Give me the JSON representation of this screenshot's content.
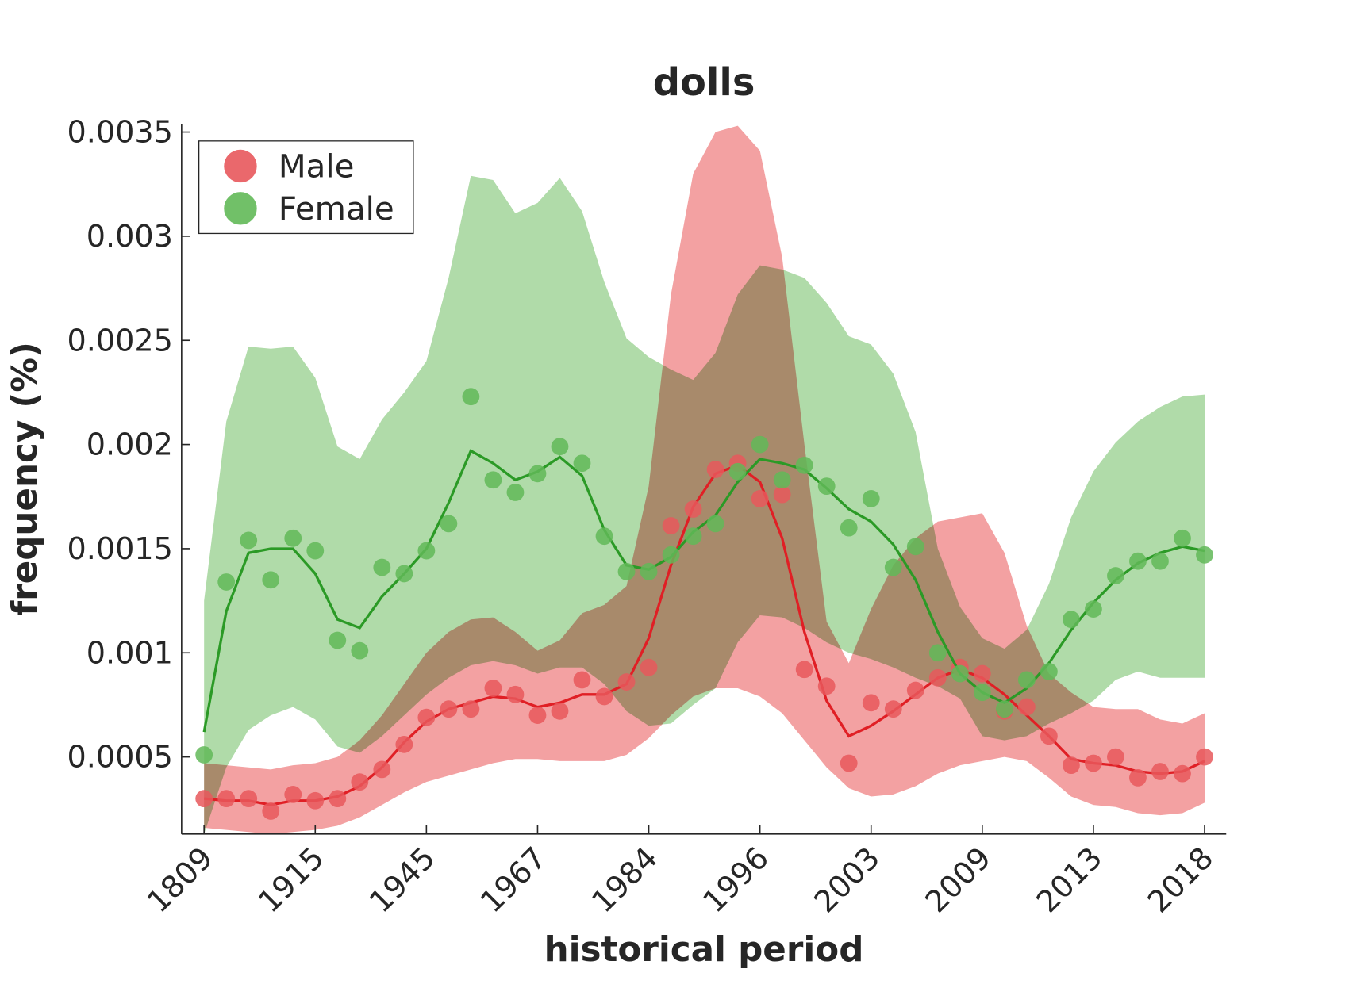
{
  "chart_data": {
    "type": "scatter-band",
    "title": "dolls",
    "x_label": "historical period",
    "y_label": "frequency (%)",
    "categories": [
      "1809",
      null,
      null,
      null,
      null,
      "1915",
      null,
      null,
      null,
      null,
      "1945",
      null,
      null,
      null,
      null,
      "1967",
      null,
      null,
      null,
      null,
      "1984",
      null,
      null,
      null,
      null,
      "1996",
      null,
      null,
      null,
      null,
      "2003",
      null,
      null,
      null,
      null,
      "2009",
      null,
      null,
      null,
      null,
      "2013",
      null,
      null,
      null,
      null,
      "2018"
    ],
    "ylim": [
      0.00013,
      0.00354
    ],
    "yticks": [
      0.0005,
      0.001,
      0.0015,
      0.002,
      0.0025,
      0.003,
      0.0035
    ],
    "legend": "upper left",
    "series": [
      {
        "name": "Male",
        "color": "#e8585c",
        "line_color": "#e01f25",
        "band_color": "#f3a1a2",
        "values": [
          0.0003,
          0.0003,
          0.0003,
          0.00024,
          0.00032,
          0.00029,
          0.0003,
          0.00038,
          0.00044,
          0.00056,
          0.00069,
          0.00073,
          0.00073,
          0.00083,
          0.0008,
          0.0007,
          0.00072,
          0.00087,
          0.00079,
          0.00086,
          0.00093,
          0.00161,
          0.00169,
          0.00188,
          0.00191,
          0.00174,
          0.00176,
          0.00092,
          0.00084,
          0.00047,
          0.00076,
          0.00073,
          0.00082,
          0.00088,
          0.00093,
          0.0009,
          0.00072,
          0.00074,
          0.0006,
          0.00046,
          0.00047,
          0.0005,
          0.0004,
          0.00043,
          0.00042,
          0.0005
        ],
        "fit": [
          0.0003,
          0.00029,
          0.00029,
          0.00027,
          0.00029,
          0.00029,
          0.00031,
          0.00036,
          0.00045,
          0.00057,
          0.00067,
          0.00073,
          0.00076,
          0.00079,
          0.00078,
          0.00074,
          0.00076,
          0.0008,
          0.0008,
          0.00085,
          0.00107,
          0.00142,
          0.0017,
          0.00186,
          0.0019,
          0.00182,
          0.00155,
          0.0011,
          0.00077,
          0.0006,
          0.00065,
          0.00072,
          0.0008,
          0.00088,
          0.00092,
          0.00088,
          0.0008,
          0.0007,
          0.0006,
          0.00049,
          0.00047,
          0.00046,
          0.00043,
          0.00042,
          0.00043,
          0.00048
        ],
        "upper": [
          0.00047,
          0.00046,
          0.00045,
          0.00044,
          0.00046,
          0.00047,
          0.0005,
          0.00058,
          0.0007,
          0.00085,
          0.001,
          0.0011,
          0.00116,
          0.00117,
          0.0011,
          0.00101,
          0.00106,
          0.00119,
          0.00123,
          0.00132,
          0.0018,
          0.00272,
          0.0033,
          0.0035,
          0.00353,
          0.00341,
          0.0029,
          0.002,
          0.00115,
          0.00095,
          0.00121,
          0.00142,
          0.00155,
          0.00163,
          0.00165,
          0.00167,
          0.00148,
          0.00113,
          0.0009,
          0.00081,
          0.00074,
          0.00073,
          0.00073,
          0.00068,
          0.00066,
          0.00071
        ],
        "lower": [
          0.00016,
          0.00015,
          0.00014,
          0.00013,
          0.00014,
          0.00015,
          0.00017,
          0.00021,
          0.00027,
          0.00033,
          0.00038,
          0.00041,
          0.00044,
          0.00047,
          0.00049,
          0.00049,
          0.00048,
          0.00048,
          0.00048,
          0.00051,
          0.00059,
          0.0007,
          0.00079,
          0.00083,
          0.00083,
          0.00079,
          0.00071,
          0.00058,
          0.00045,
          0.00035,
          0.00031,
          0.00032,
          0.00036,
          0.00042,
          0.00046,
          0.00048,
          0.0005,
          0.00048,
          0.0004,
          0.00031,
          0.00027,
          0.00026,
          0.00023,
          0.00022,
          0.00023,
          0.00028
        ]
      },
      {
        "name": "Female",
        "color": "#62b958",
        "line_color": "#2b9a26",
        "band_color": "#b0dba9",
        "values": [
          0.00051,
          0.00134,
          0.00154,
          0.00135,
          0.00155,
          0.00149,
          0.00106,
          0.00101,
          0.00141,
          0.00138,
          0.00149,
          0.00162,
          0.00223,
          0.00183,
          0.00177,
          0.00186,
          0.00199,
          0.00191,
          0.00156,
          0.00139,
          0.00139,
          0.00147,
          0.00156,
          0.00162,
          0.00187,
          0.002,
          0.00183,
          0.0019,
          0.0018,
          0.0016,
          0.00174,
          0.00141,
          0.00151,
          0.001,
          0.0009,
          0.00081,
          0.00073,
          0.00087,
          0.00091,
          0.00116,
          0.00121,
          0.00137,
          0.00144,
          0.00144,
          0.00155,
          0.00147
        ],
        "fit": [
          0.00062,
          0.0012,
          0.00148,
          0.0015,
          0.0015,
          0.00138,
          0.00116,
          0.00112,
          0.00127,
          0.00138,
          0.0015,
          0.00172,
          0.00197,
          0.00191,
          0.00183,
          0.00187,
          0.00194,
          0.00185,
          0.00159,
          0.00142,
          0.0014,
          0.00146,
          0.00158,
          0.00166,
          0.00182,
          0.00193,
          0.00191,
          0.00188,
          0.00179,
          0.00169,
          0.00163,
          0.00152,
          0.00135,
          0.0011,
          0.0009,
          0.00081,
          0.00076,
          0.00083,
          0.00095,
          0.00111,
          0.00124,
          0.00135,
          0.00143,
          0.00148,
          0.00151,
          0.00149
        ],
        "upper": [
          0.00125,
          0.00211,
          0.00247,
          0.00246,
          0.00247,
          0.00232,
          0.00199,
          0.00193,
          0.00212,
          0.00225,
          0.0024,
          0.0028,
          0.00329,
          0.00327,
          0.00311,
          0.00316,
          0.00328,
          0.00312,
          0.00278,
          0.00251,
          0.00242,
          0.00236,
          0.00231,
          0.00244,
          0.00272,
          0.00286,
          0.00284,
          0.0028,
          0.00268,
          0.00252,
          0.00248,
          0.00234,
          0.00206,
          0.0015,
          0.00122,
          0.00107,
          0.00102,
          0.00111,
          0.00133,
          0.00165,
          0.00187,
          0.00201,
          0.00211,
          0.00218,
          0.00223,
          0.00224
        ],
        "lower": [
          0.00013,
          0.00045,
          0.00063,
          0.0007,
          0.00074,
          0.00068,
          0.00055,
          0.00052,
          0.0006,
          0.0007,
          0.0008,
          0.00088,
          0.00094,
          0.00096,
          0.00094,
          0.0009,
          0.00093,
          0.00093,
          0.00085,
          0.00072,
          0.00065,
          0.00066,
          0.00075,
          0.00083,
          0.00105,
          0.00118,
          0.00117,
          0.00112,
          0.00105,
          0.001,
          0.00097,
          0.00093,
          0.00088,
          0.00084,
          0.00078,
          0.0006,
          0.00058,
          0.0006,
          0.00066,
          0.00071,
          0.00077,
          0.00087,
          0.00091,
          0.00088,
          0.00088,
          0.00088
        ]
      }
    ]
  }
}
